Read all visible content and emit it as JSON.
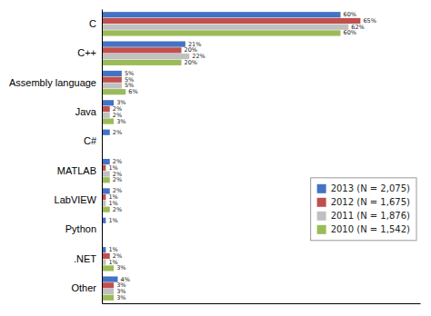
{
  "chart_data": {
    "type": "bar",
    "orientation": "horizontal",
    "categories": [
      "C",
      "C++",
      "Assembly language",
      "Java",
      "C#",
      "MATLAB",
      "LabVIEW",
      "Python",
      ".NET",
      "Other"
    ],
    "series": [
      {
        "name": "2013 (N = 2,075)",
        "color": "#4472C4",
        "values": [
          60,
          21,
          5,
          3,
          2,
          2,
          2,
          1,
          1,
          4
        ],
        "value_labels": [
          "60%",
          "21%",
          "5%",
          "3%",
          "2%",
          "2%",
          "2%",
          "1%",
          "1%",
          "4%"
        ]
      },
      {
        "name": "2012 (N = 1,675)",
        "color": "#C0504D",
        "values": [
          65,
          20,
          5,
          2,
          0,
          1,
          1,
          0,
          2,
          3
        ],
        "value_labels": [
          "65%",
          "20%",
          "5%",
          "2%",
          null,
          "1%",
          "1%",
          null,
          "2%",
          "3%"
        ]
      },
      {
        "name": "2011 (N = 1,876)",
        "color": "#C0C0C0",
        "values": [
          62,
          22,
          5,
          2,
          0,
          2,
          1,
          0,
          1,
          3
        ],
        "value_labels": [
          "62%",
          "22%",
          "5%",
          "2%",
          null,
          "2%",
          "1%",
          null,
          "1%",
          "3%"
        ]
      },
      {
        "name": "2010 (N = 1,542)",
        "color": "#9BBB59",
        "values": [
          60,
          20,
          6,
          3,
          0,
          2,
          2,
          0,
          3,
          3
        ],
        "value_labels": [
          "60%",
          "20%",
          "6%",
          "3%",
          null,
          "2%",
          "2%",
          null,
          "3%",
          "3%"
        ]
      }
    ],
    "xlim": [
      0,
      80
    ],
    "data_labels": true,
    "tick_labels": "y",
    "grid": false,
    "legend": "right"
  }
}
